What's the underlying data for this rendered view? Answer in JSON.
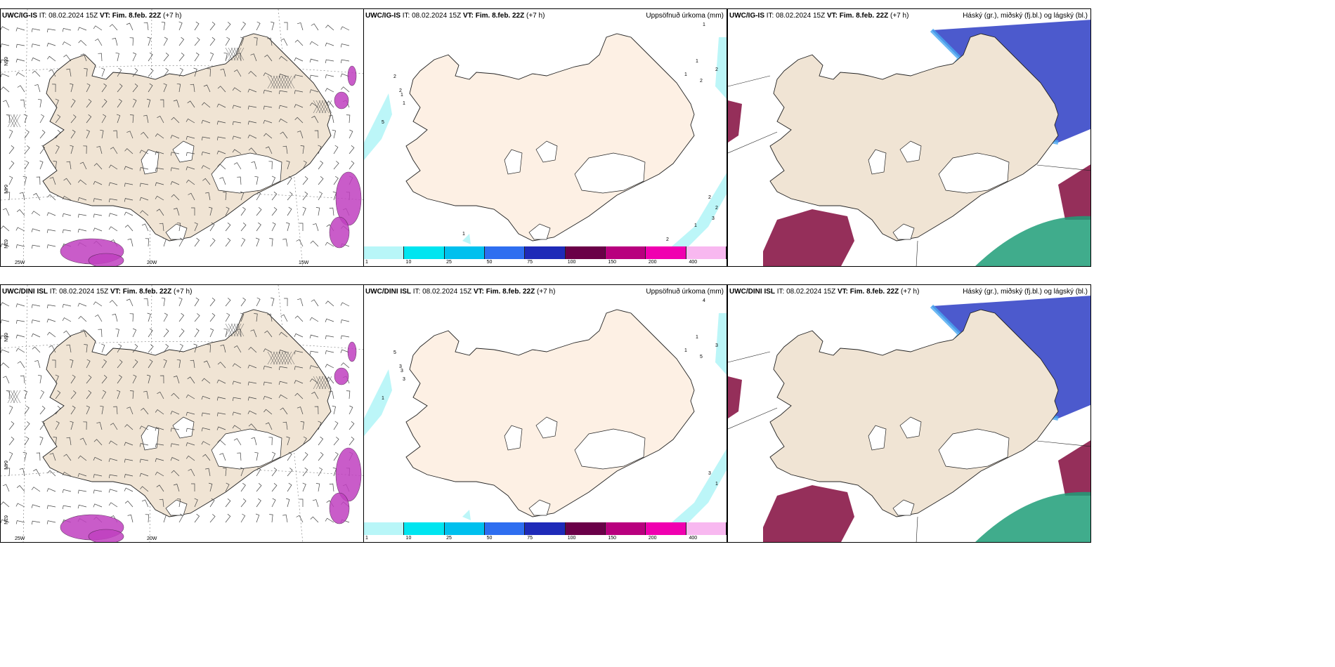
{
  "rows": [
    {
      "panels": [
        {
          "type": "wind",
          "model": "UWC/IG-IS",
          "it_label": "IT:",
          "it_value": "08.02.2024 15Z",
          "vt_label": "VT:",
          "vt_value": "Fim. 8.feb. 22Z",
          "lead": "(+7 h)",
          "right_title": "",
          "lat_labels": [
            "65N",
            "64N",
            "63N"
          ],
          "lon_labels": [
            "25W",
            "20W",
            "15W"
          ]
        },
        {
          "type": "precip",
          "model": "UWC/IG-IS",
          "it_label": "IT:",
          "it_value": "08.02.2024 15Z",
          "vt_label": "VT:",
          "vt_value": "Fim. 8.feb. 22Z",
          "lead": "(+7 h)",
          "right_title": "Uppsöfnuð úrkoma (mm)",
          "contour_labels": [
            "2",
            "2",
            "1",
            "5",
            "1",
            "1",
            "1",
            "2",
            "1",
            "2",
            "2",
            "2",
            "3",
            "1",
            "1",
            "2"
          ]
        },
        {
          "type": "cloud",
          "model": "UWC/IG-IS",
          "it_label": "IT:",
          "it_value": "08.02.2024 15Z",
          "vt_label": "VT:",
          "vt_value": "Fim. 8.feb. 22Z",
          "lead": "(+7 h)",
          "right_title": "Háský (gr.), miðský (fj.bl.) og lágský (bl.)"
        }
      ]
    },
    {
      "panels": [
        {
          "type": "wind",
          "model": "UWC/DINI ISL",
          "it_label": "IT:",
          "it_value": "08.02.2024 15Z",
          "vt_label": "VT:",
          "vt_value": "Fim. 8.feb. 22Z",
          "lead": "(+7 h)",
          "right_title": "",
          "lat_labels": [
            "65N",
            "64N",
            "63N"
          ],
          "lon_labels": [
            "25W",
            "20W"
          ]
        },
        {
          "type": "precip",
          "model": "UWC/DINI ISL",
          "it_label": "IT:",
          "it_value": "08.02.2024 15Z",
          "vt_label": "VT:",
          "vt_value": "Fim. 8.feb. 22Z",
          "lead": "(+7 h)",
          "right_title": "Uppsöfnuð úrkoma (mm)",
          "contour_labels": [
            "5",
            "3",
            "3",
            "1",
            "3",
            "1",
            "1",
            "5",
            "4",
            "3",
            "3",
            "1"
          ]
        },
        {
          "type": "cloud",
          "model": "UWC/DINI ISL",
          "it_label": "IT:",
          "it_value": "08.02.2024 15Z",
          "vt_label": "VT:",
          "vt_value": "Fim. 8.feb. 22Z",
          "lead": "(+7 h)",
          "right_title": "Háský (gr.), miðský (fj.bl.) og lágský (bl.)"
        }
      ]
    }
  ],
  "colorbar": {
    "labels": [
      "1",
      "10",
      "25",
      "50",
      "75",
      "100",
      "150",
      "200",
      "400"
    ],
    "colors": [
      "#b8f6f8",
      "#00e5f0",
      "#00c0ee",
      "#2e6ef0",
      "#1e2ab8",
      "#6a0048",
      "#b8007e",
      "#f000b0",
      "#f8b8f0"
    ]
  },
  "colors": {
    "land_wind": "#f0e4d4",
    "land_precip": "#fdf0e4",
    "land_cloud": "#f0e4d4",
    "precip_light": "#b8f6f8",
    "high_cloud": "#1f9e78",
    "mid_cloud": "#8a1848",
    "low_cloud": "#3848c8",
    "low_cloud_edge": "#48a8f0",
    "wind_precip": "#c040c0"
  }
}
